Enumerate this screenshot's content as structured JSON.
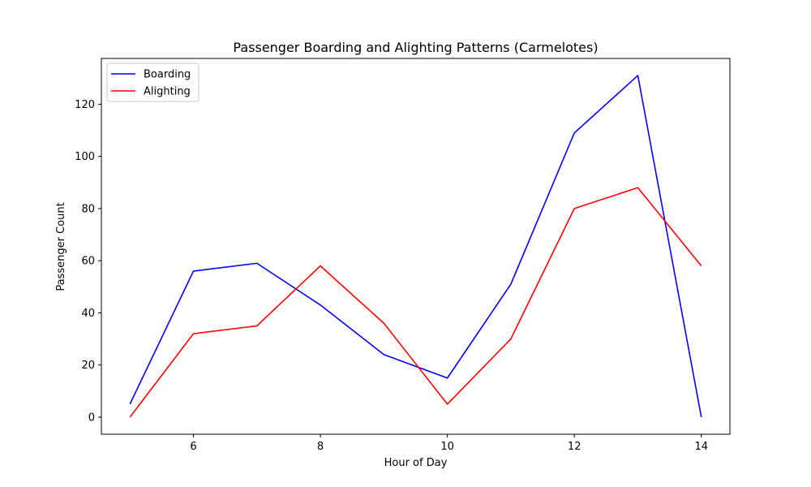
{
  "chart_data": {
    "type": "line",
    "title": "Passenger Boarding and Alighting Patterns (Carmelotes)",
    "xlabel": "Hour of Day",
    "ylabel": "Passenger Count",
    "x": [
      5,
      6,
      7,
      8,
      9,
      10,
      11,
      12,
      13,
      14
    ],
    "series": [
      {
        "name": "Boarding",
        "color": "#0000ff",
        "values": [
          5,
          56,
          59,
          43,
          24,
          15,
          51,
          109,
          131,
          0
        ]
      },
      {
        "name": "Alighting",
        "color": "#ff0000",
        "values": [
          0,
          32,
          35,
          58,
          36,
          5,
          30,
          80,
          88,
          58
        ]
      }
    ],
    "xlim": [
      4.55,
      14.45
    ],
    "ylim": [
      -6.55,
      137.55
    ],
    "xticks": [
      6,
      8,
      10,
      12,
      14
    ],
    "yticks": [
      0,
      20,
      40,
      60,
      80,
      100,
      120
    ],
    "grid": false,
    "legend": "upper-left"
  }
}
